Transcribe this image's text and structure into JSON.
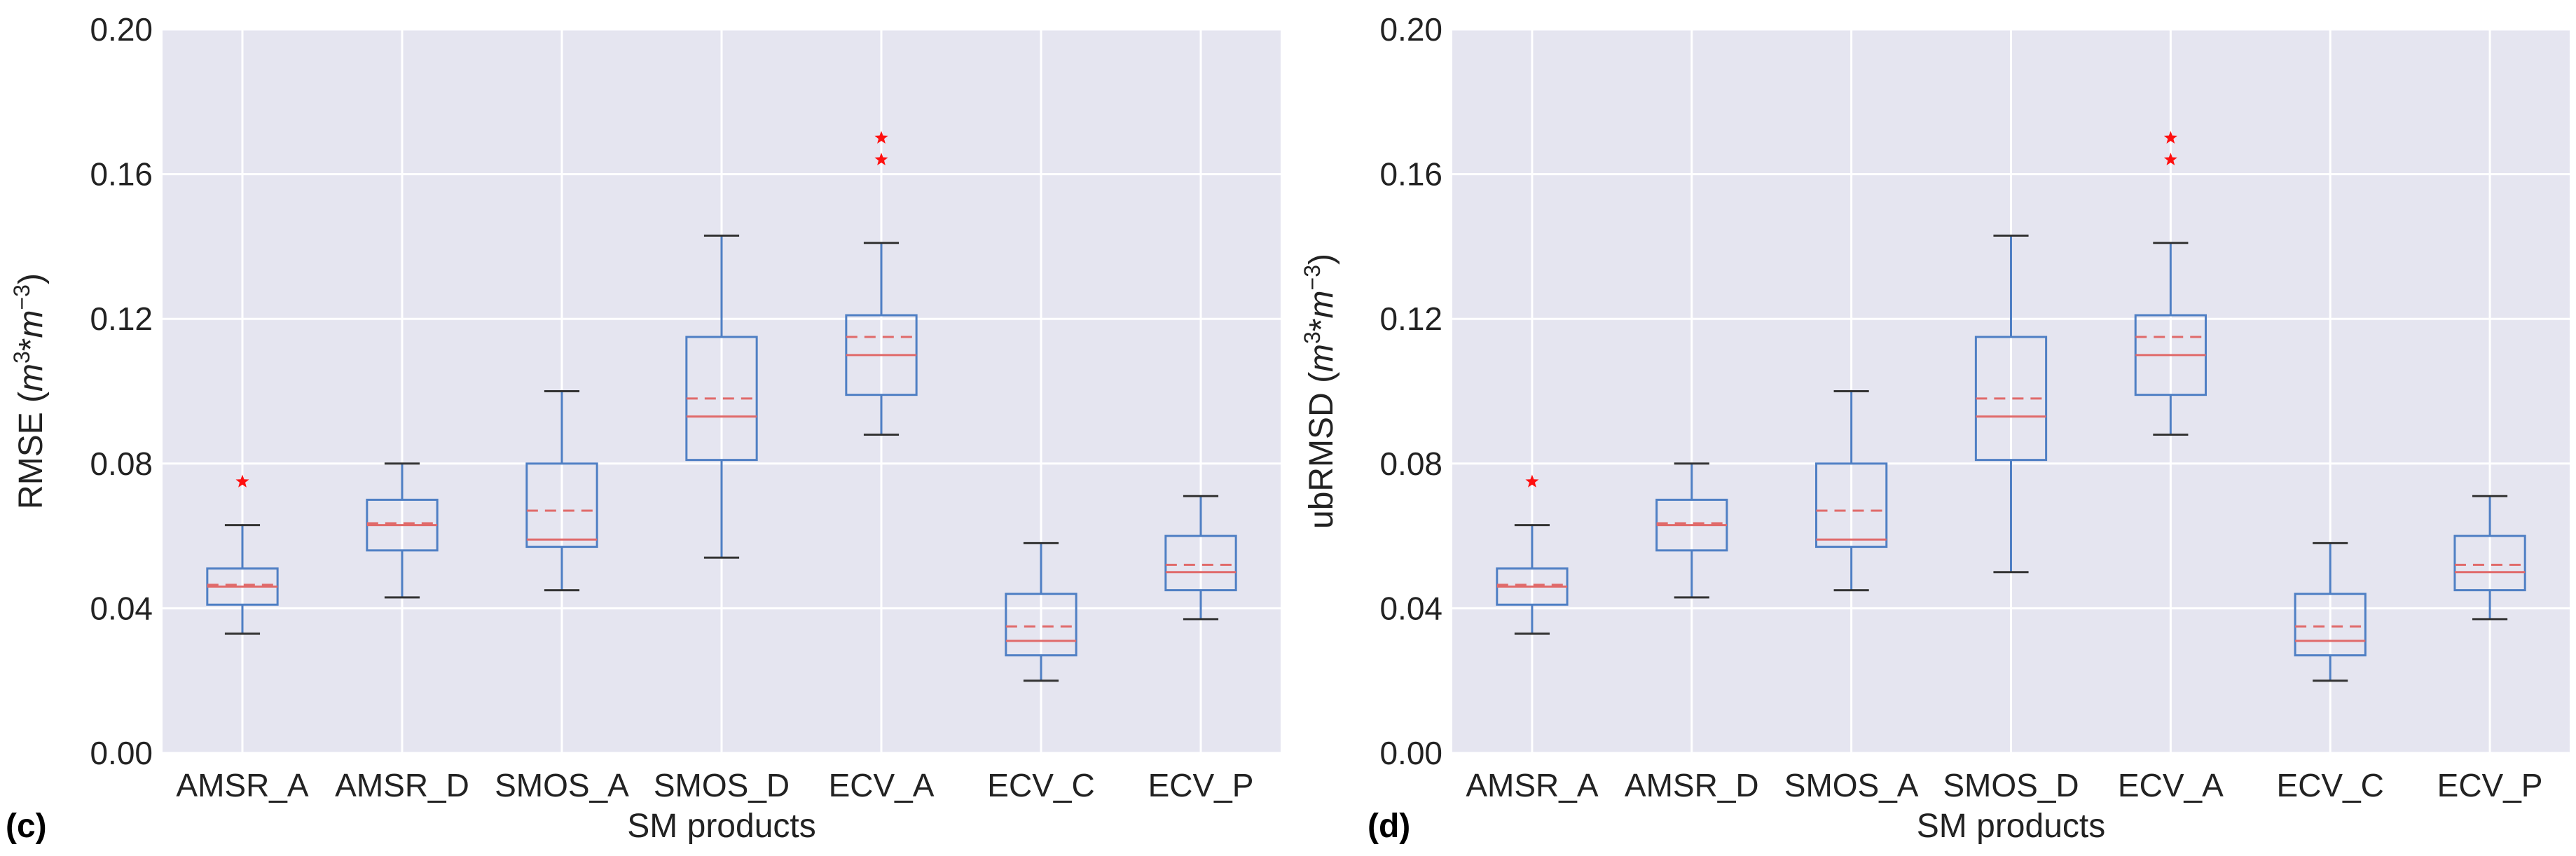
{
  "colors": {
    "background": "#e5e5f0",
    "grid": "#ffffff",
    "box": "#4f7fc4",
    "median": "#e06a6a",
    "mean": "#e06a6a",
    "whisker_cap": "#333333",
    "outlier": "#ff1010"
  },
  "chart_data": [
    {
      "type": "boxplot",
      "panel_label": "(c)",
      "xlabel": "SM products",
      "ylabel_main": "RMSE (",
      "ylabel_m": "m",
      "ylabel_exp1": "3",
      "ylabel_star": "*",
      "ylabel_exp2": "−3",
      "ylabel_close": ")",
      "ylim": [
        0,
        0.2
      ],
      "yticks": [
        "0.00",
        "0.04",
        "0.08",
        "0.12",
        "0.16",
        "0.20"
      ],
      "ytick_values": [
        0,
        0.04,
        0.08,
        0.12,
        0.16,
        0.2
      ],
      "categories": [
        "AMSR_A",
        "AMSR_D",
        "SMOS_A",
        "SMOS_D",
        "ECV_A",
        "ECV_C",
        "ECV_P"
      ],
      "boxes": [
        {
          "whislo": 0.033,
          "q1": 0.041,
          "med": 0.046,
          "mean": 0.0465,
          "q3": 0.051,
          "whishi": 0.063,
          "fliers": [
            0.075
          ]
        },
        {
          "whislo": 0.043,
          "q1": 0.056,
          "med": 0.063,
          "mean": 0.0635,
          "q3": 0.07,
          "whishi": 0.08,
          "fliers": []
        },
        {
          "whislo": 0.045,
          "q1": 0.057,
          "med": 0.059,
          "mean": 0.067,
          "q3": 0.08,
          "whishi": 0.1,
          "fliers": []
        },
        {
          "whislo": 0.054,
          "q1": 0.081,
          "med": 0.093,
          "mean": 0.098,
          "q3": 0.115,
          "whishi": 0.143,
          "fliers": []
        },
        {
          "whislo": 0.088,
          "q1": 0.099,
          "med": 0.11,
          "mean": 0.115,
          "q3": 0.121,
          "whishi": 0.141,
          "fliers": [
            0.164,
            0.17
          ]
        },
        {
          "whislo": 0.02,
          "q1": 0.027,
          "med": 0.031,
          "mean": 0.035,
          "q3": 0.044,
          "whishi": 0.058,
          "fliers": []
        },
        {
          "whislo": 0.037,
          "q1": 0.045,
          "med": 0.05,
          "mean": 0.052,
          "q3": 0.06,
          "whishi": 0.071,
          "fliers": []
        }
      ]
    },
    {
      "type": "boxplot",
      "panel_label": "(d)",
      "xlabel": "SM products",
      "ylabel_main": "ubRMSD (",
      "ylabel_m": "m",
      "ylabel_exp1": "3",
      "ylabel_star": "*",
      "ylabel_exp2": "−3",
      "ylabel_close": ")",
      "ylim": [
        0,
        0.2
      ],
      "yticks": [
        "0.00",
        "0.04",
        "0.08",
        "0.12",
        "0.16",
        "0.20"
      ],
      "ytick_values": [
        0,
        0.04,
        0.08,
        0.12,
        0.16,
        0.2
      ],
      "categories": [
        "AMSR_A",
        "AMSR_D",
        "SMOS_A",
        "SMOS_D",
        "ECV_A",
        "ECV_C",
        "ECV_P"
      ],
      "boxes": [
        {
          "whislo": 0.033,
          "q1": 0.041,
          "med": 0.046,
          "mean": 0.0465,
          "q3": 0.051,
          "whishi": 0.063,
          "fliers": [
            0.075
          ]
        },
        {
          "whislo": 0.043,
          "q1": 0.056,
          "med": 0.063,
          "mean": 0.0635,
          "q3": 0.07,
          "whishi": 0.08,
          "fliers": []
        },
        {
          "whislo": 0.045,
          "q1": 0.057,
          "med": 0.059,
          "mean": 0.067,
          "q3": 0.08,
          "whishi": 0.1,
          "fliers": []
        },
        {
          "whislo": 0.05,
          "q1": 0.081,
          "med": 0.093,
          "mean": 0.098,
          "q3": 0.115,
          "whishi": 0.143,
          "fliers": []
        },
        {
          "whislo": 0.088,
          "q1": 0.099,
          "med": 0.11,
          "mean": 0.115,
          "q3": 0.121,
          "whishi": 0.141,
          "fliers": [
            0.164,
            0.17
          ]
        },
        {
          "whislo": 0.02,
          "q1": 0.027,
          "med": 0.031,
          "mean": 0.035,
          "q3": 0.044,
          "whishi": 0.058,
          "fliers": []
        },
        {
          "whislo": 0.037,
          "q1": 0.045,
          "med": 0.05,
          "mean": 0.052,
          "q3": 0.06,
          "whishi": 0.071,
          "fliers": []
        }
      ]
    }
  ]
}
